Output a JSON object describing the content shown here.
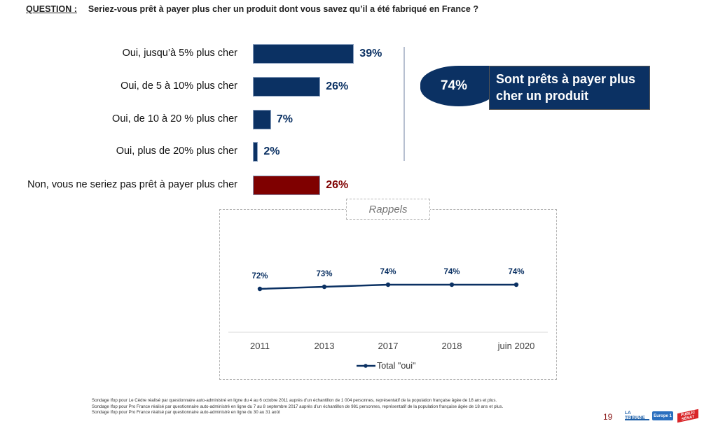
{
  "question": {
    "label": "QUESTION :",
    "text": "Seriez-vous prêt à payer plus cher un produit dont vous savez qu’il a été fabriqué en France ?"
  },
  "colors": {
    "oui": "#0b3163",
    "non": "#7f0000",
    "line": "#0b3163"
  },
  "summary": {
    "value": "74%",
    "text": "Sont prêts à payer plus cher un produit"
  },
  "recall": {
    "title": "Rappels"
  },
  "chart_data": [
    {
      "type": "bar",
      "orientation": "horizontal",
      "categories": [
        "Oui, jusqu’à 5% plus cher",
        "Oui, de 5 à 10% plus cher",
        "Oui, de 10 à 20 % plus cher",
        "Oui, plus de 20% plus cher",
        "Non, vous ne seriez pas prêt à payer plus cher"
      ],
      "values": [
        39,
        26,
        7,
        2,
        26
      ],
      "labels": [
        "39%",
        "26%",
        "7%",
        "2%",
        "26%"
      ],
      "groups": [
        "oui",
        "oui",
        "oui",
        "oui",
        "non"
      ],
      "unit": "%"
    },
    {
      "type": "line",
      "title": "Rappels",
      "categories": [
        "2011",
        "2013",
        "2017",
        "2018",
        "juin 2020"
      ],
      "series": [
        {
          "name": "Total \"oui\"",
          "values": [
            72,
            73,
            74,
            74,
            74
          ],
          "labels": [
            "72%",
            "73%",
            "74%",
            "74%",
            "74%"
          ]
        }
      ],
      "ylim": [
        0,
        100
      ],
      "legend": "bottom"
    }
  ],
  "footnotes": [
    "Sondage Ifop pour Le Cèdre réalisé par questionnaire auto-administré en ligne du 4 au 6 octobre 2011 auprès d’un échantillon de 1 004 personnes, représentatif de la population française âgée de 18 ans et plus.",
    "Sondage Ifop pour Pro France réalisé par questionnaire auto-administré en ligne du 7 au 8 septembre 2017 auprès d’un échantillon de 981 personnes, représentatif de la population française âgée de 18 ans et plus.",
    "Sondage Ifop pour Pro France réalisé par questionnaire auto-administré en ligne du 30 au 31 août"
  ],
  "page_number": "19",
  "logos": [
    "LA TRIBUNE",
    "Europe 1",
    "PUBLIC SÉNAT"
  ]
}
